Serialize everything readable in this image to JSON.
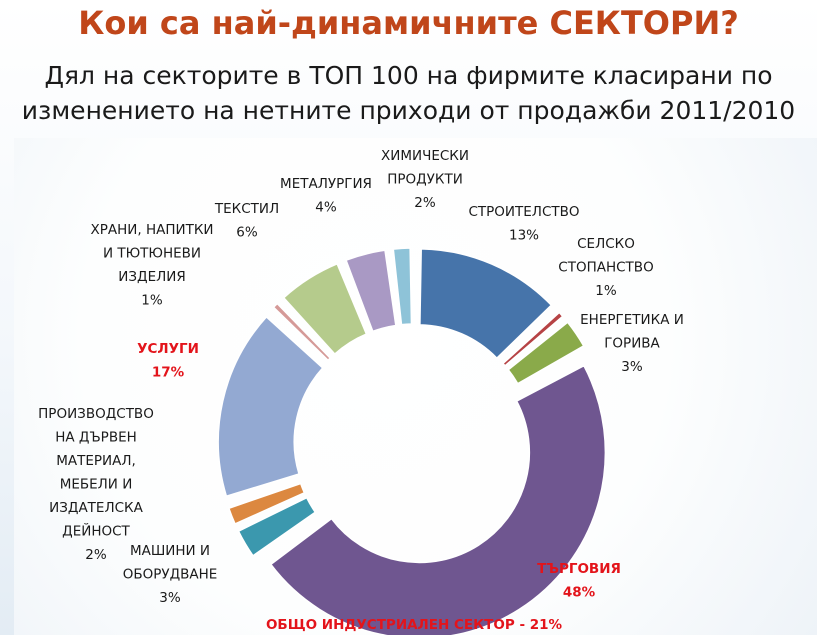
{
  "title": "Кои са най-динамичните СЕКТОРИ?",
  "subtitle_lines": [
    "Дял на секторите в ТОП 100 на фирмите класирани по",
    "изменението на нетните приходи от продажби 2011/2010"
  ],
  "chart_data": {
    "type": "pie",
    "variant": "donut-exploded",
    "title": "Кои са най-динамичните СЕКТОРИ?",
    "slices": [
      {
        "name": "СТРОИТЕЛСТВО",
        "label_lines": [
          "СТРОИТЕЛСТВО",
          "13%"
        ],
        "value": 13,
        "color": "#4674aa"
      },
      {
        "name": "СЕЛСКО СТОПАНСТВО",
        "label_lines": [
          "СЕЛСКО",
          "СТОПАНСТВО",
          "1%"
        ],
        "value": 1,
        "color": "#b64345"
      },
      {
        "name": "ЕНЕРГЕТИКА И ГОРИВА",
        "label_lines": [
          "ЕНЕРГЕТИКА И",
          "ГОРИВА",
          "3%"
        ],
        "value": 3,
        "color": "#8aaa4a"
      },
      {
        "name": "ТЪРГОВИЯ",
        "label_lines": [
          "ТЪРГОВИЯ",
          "48%"
        ],
        "value": 48,
        "color": "#6f5690",
        "highlight": true
      },
      {
        "name": "МАШИНИ И ОБОРУДВАНЕ",
        "label_lines": [
          "МАШИНИ И",
          "ОБОРУДВАНЕ",
          "3%"
        ],
        "value": 3,
        "color": "#3b98ae"
      },
      {
        "name": "ПРОИЗВОДСТВО НА ДЪРВЕН МАТЕРИАЛ, МЕБЕЛИ И ИЗДАТЕЛСКА ДЕЙНОСТ",
        "label_lines": [
          "ПРОИЗВОДСТВО",
          "НА ДЪРВЕН",
          "МАТЕРИАЛ,",
          "МЕБЕЛИ И",
          "ИЗДАТЕЛСКА",
          "ДЕЙНОСТ",
          "2%"
        ],
        "value": 2,
        "color": "#dc8840"
      },
      {
        "name": "УСЛУГИ",
        "label_lines": [
          "УСЛУГИ",
          "17%"
        ],
        "value": 17,
        "color": "#93a9d2",
        "highlight": true
      },
      {
        "name": "ХРАНИ, НАПИТКИ И ТЮТЮНЕВИ ИЗДЕЛИЯ",
        "label_lines": [
          "ХРАНИ, НАПИТКИ",
          "И ТЮТЮНЕВИ",
          "ИЗДЕЛИЯ",
          "1%"
        ],
        "value": 1,
        "color": "#d59a98"
      },
      {
        "name": "ТЕКСТИЛ",
        "label_lines": [
          "ТЕКСТИЛ",
          "6%"
        ],
        "value": 6,
        "color": "#b5cb8c"
      },
      {
        "name": "МЕТАЛУРГИЯ",
        "label_lines": [
          "МЕТАЛУРГИЯ",
          "4%"
        ],
        "value": 4,
        "color": "#a999c4"
      },
      {
        "name": "ХИМИЧЕСКИ ПРОДУКТИ",
        "label_lines": [
          "ХИМИЧЕСКИ",
          "ПРОДУКТИ",
          "2%"
        ],
        "value": 2,
        "color": "#8ec3d8"
      }
    ],
    "annotations": [
      "ОБЩО ИНДУСТРИАЛЕН СЕКТОР - 21%"
    ],
    "annotation_color": "#e3141b",
    "legend": "none"
  }
}
